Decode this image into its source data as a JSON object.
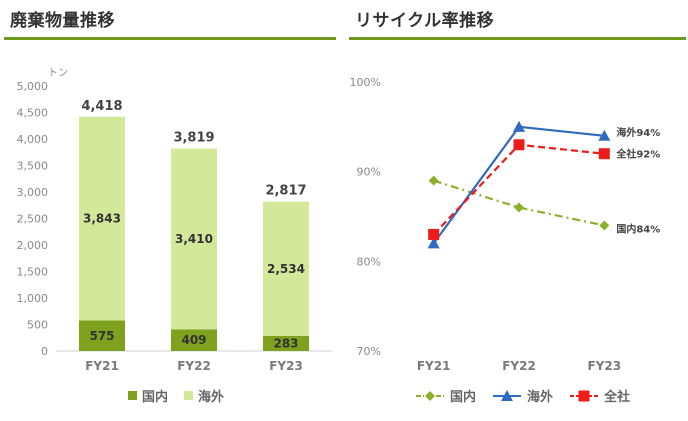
{
  "left_panel": {
    "title": "廃棄物量推移"
  },
  "right_panel": {
    "title": "リサイクル率推移"
  },
  "chart_data": [
    {
      "type": "bar",
      "stacked": true,
      "title": "廃棄物量推移",
      "unit_label": "トン",
      "categories": [
        "FY21",
        "FY22",
        "FY23"
      ],
      "series": [
        {
          "name": "国内",
          "values": [
            575,
            409,
            283
          ],
          "color": "#7ea11e"
        },
        {
          "name": "海外",
          "values": [
            3843,
            3410,
            2534
          ],
          "color": "#d4e89a"
        }
      ],
      "totals": [
        4418,
        3819,
        2817
      ],
      "total_labels": [
        "4,418",
        "3,819",
        "2,817"
      ],
      "segment_labels": [
        [
          "575",
          "409",
          "283"
        ],
        [
          "3,843",
          "3,410",
          "2,534"
        ]
      ],
      "ylim": [
        0,
        5000
      ],
      "yticks": [
        0,
        500,
        1000,
        1500,
        2000,
        2500,
        3000,
        3500,
        4000,
        4500,
        5000
      ],
      "ytick_labels": [
        "0",
        "500",
        "1,000",
        "1,500",
        "2,000",
        "2,500",
        "3,000",
        "3,500",
        "4,000",
        "4,500",
        "5,000"
      ],
      "grid": false,
      "legend": "bottom"
    },
    {
      "type": "line",
      "title": "リサイクル率推移",
      "categories": [
        "FY21",
        "FY22",
        "FY23"
      ],
      "series": [
        {
          "name": "国内",
          "values": [
            89,
            86,
            84
          ],
          "color": "#8db02c",
          "marker": "diamond",
          "dash": "dashdot",
          "end_label": "国内84%"
        },
        {
          "name": "海外",
          "values": [
            82,
            95,
            94
          ],
          "color": "#2f6bbf",
          "marker": "triangle",
          "dash": "solid",
          "end_label": "海外94%"
        },
        {
          "name": "全社",
          "values": [
            83,
            93,
            92
          ],
          "color": "#ee1b1b",
          "marker": "square",
          "dash": "dashed",
          "end_label": "全社92%"
        }
      ],
      "ylim": [
        70,
        100
      ],
      "yticks": [
        70,
        80,
        90,
        100
      ],
      "ytick_labels": [
        "70%",
        "80%",
        "90%",
        "100%"
      ],
      "grid": false,
      "legend": "bottom"
    }
  ]
}
